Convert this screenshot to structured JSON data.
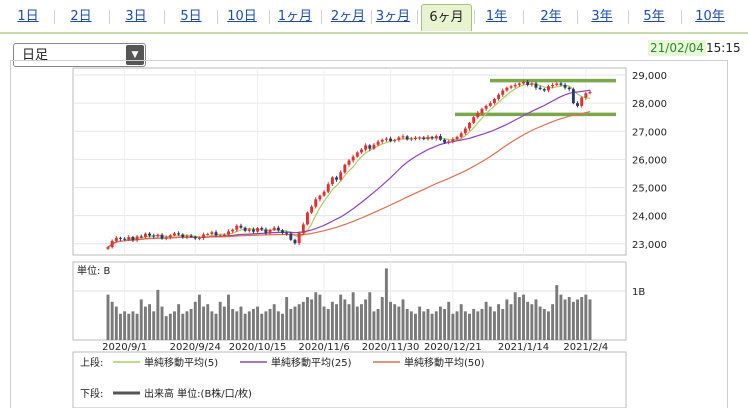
{
  "tabs": [
    {
      "label": "1日"
    },
    {
      "label": "2日"
    },
    {
      "label": "3日"
    },
    {
      "label": "5日"
    },
    {
      "label": "10日"
    },
    {
      "label": "1ヶ月"
    },
    {
      "label": "2ヶ月"
    },
    {
      "label": "3ヶ月"
    },
    {
      "label": "6ヶ月",
      "active": true
    },
    {
      "label": "1年"
    },
    {
      "label": "2年"
    },
    {
      "label": "3年"
    },
    {
      "label": "5年"
    },
    {
      "label": "10年"
    }
  ],
  "period_select": {
    "value": "日足",
    "arrow": "▼"
  },
  "timestamp": {
    "date": "21/02/04",
    "time": "15:15"
  },
  "colors": {
    "up": "#e03030",
    "down": "#2a3a6a",
    "ma5": "#a8d060",
    "ma25": "#9040c0",
    "ma50": "#e07050",
    "volume": "#7a7a7a",
    "band": "#7aa848",
    "link": "#1a4bb5"
  },
  "chart_data": {
    "type": "candlestick",
    "price_axis": {
      "ticks": [
        23000,
        24000,
        25000,
        26000,
        27000,
        28000,
        29000
      ],
      "tick_labels": [
        "23,000",
        "24,000",
        "25,000",
        "26,000",
        "27,000",
        "28,000",
        "29,000"
      ],
      "ylim": [
        22600,
        29250
      ]
    },
    "x_tick_labels": [
      "2020/9/1",
      "2020/9/24",
      "2020/10/15",
      "2020/11/6",
      "2020/11/30",
      "2020/12/21",
      "2021/1/14",
      "2021/2/4"
    ],
    "x_tick_index": [
      4,
      21,
      36,
      52,
      68,
      83,
      100,
      115
    ],
    "horizontal_bands": [
      28800,
      27600
    ],
    "closes": [
      22880,
      23100,
      23210,
      23180,
      23150,
      23240,
      23130,
      23260,
      23240,
      23360,
      23290,
      23260,
      23320,
      23190,
      23230,
      23300,
      23370,
      23330,
      23240,
      23280,
      23250,
      23190,
      23210,
      23330,
      23350,
      23410,
      23300,
      23300,
      23320,
      23440,
      23500,
      23640,
      23570,
      23460,
      23510,
      23430,
      23560,
      23510,
      23380,
      23490,
      23570,
      23480,
      23390,
      23360,
      23140,
      23020,
      23380,
      23690,
      24110,
      24320,
      24580,
      24710,
      24850,
      25120,
      25360,
      25280,
      25540,
      25810,
      25960,
      26100,
      26250,
      26350,
      26500,
      26380,
      26520,
      26630,
      26700,
      26740,
      26650,
      26690,
      26780,
      26820,
      26710,
      26740,
      26760,
      26780,
      26720,
      26800,
      26750,
      26830,
      26700,
      26600,
      26640,
      26720,
      26800,
      26930,
      27100,
      27300,
      27500,
      27650,
      27800,
      27900,
      28000,
      28150,
      28300,
      28450,
      28550,
      28600,
      28650,
      28700,
      28750,
      28650,
      28700,
      28550,
      28500,
      28450,
      28600,
      28650,
      28700,
      28650,
      28550,
      28500,
      28000,
      27900,
      28200,
      28350,
      28400
    ],
    "price_ma_note": "moving averages computed from closes",
    "volume_unit_label": "単位: B",
    "volume_tick_label": "1B",
    "volumes": [
      0.95,
      0.8,
      0.7,
      0.55,
      0.6,
      0.55,
      0.6,
      0.55,
      0.85,
      0.7,
      0.75,
      0.6,
      1.05,
      0.7,
      0.5,
      0.55,
      0.6,
      0.75,
      0.55,
      0.6,
      0.65,
      0.8,
      0.95,
      0.7,
      0.75,
      0.6,
      0.55,
      0.8,
      0.7,
      0.95,
      0.65,
      0.6,
      0.7,
      0.55,
      0.6,
      0.65,
      0.7,
      0.55,
      0.6,
      0.65,
      0.75,
      0.6,
      0.55,
      0.9,
      0.65,
      0.7,
      0.75,
      0.8,
      0.9,
      0.85,
      1.0,
      0.95,
      0.7,
      0.65,
      0.8,
      0.75,
      0.95,
      0.85,
      0.75,
      1.0,
      0.7,
      0.75,
      0.85,
      1.0,
      0.6,
      0.65,
      0.9,
      1.5,
      0.8,
      0.75,
      0.7,
      0.85,
      0.65,
      0.6,
      0.55,
      0.7,
      0.6,
      0.65,
      0.55,
      0.6,
      0.7,
      0.65,
      0.8,
      0.55,
      0.6,
      0.75,
      0.6,
      0.55,
      0.65,
      0.6,
      0.65,
      0.8,
      0.7,
      0.6,
      0.75,
      0.65,
      0.85,
      0.75,
      1.0,
      0.9,
      0.95,
      0.8,
      0.75,
      0.85,
      0.7,
      0.65,
      0.6,
      0.75,
      1.15,
      0.95,
      0.85,
      0.9,
      0.8,
      0.85,
      0.9,
      0.95,
      0.85
    ]
  },
  "legend": {
    "upper_label": "上段:",
    "lower_label": "下段:",
    "ma5": "単純移動平均(5)",
    "ma25": "単純移動平均(25)",
    "ma50": "単純移動平均(50)",
    "volume": "出来高 単位:(B株/口/枚)"
  }
}
